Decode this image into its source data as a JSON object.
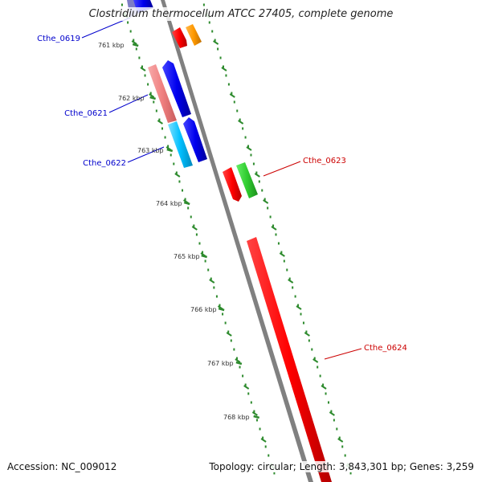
{
  "title": "Clostridium thermocellum ATCC 27405, complete genome",
  "footer": {
    "accession": "Accession: NC_009012",
    "summary": "Topology: circular; Length: 3,843,301 bp; Genes: 3,259"
  },
  "colors": {
    "backbone": "#808080",
    "tick": "#2e8b2e",
    "label_blue": "#0000cc",
    "label_red": "#cc0000"
  },
  "ticks": [
    {
      "label": "761 kbp"
    },
    {
      "label": "762 kbp"
    },
    {
      "label": "763 kbp"
    },
    {
      "label": "764 kbp"
    },
    {
      "label": "765 kbp"
    },
    {
      "label": "766 kbp"
    },
    {
      "label": "767 kbp"
    },
    {
      "label": "768 kbp"
    }
  ],
  "genes": [
    {
      "id": "Cthe_0619",
      "color": "#0000cc"
    },
    {
      "id": "Cthe_0621",
      "color": "#0000cc"
    },
    {
      "id": "Cthe_0622",
      "color": "#0000cc"
    },
    {
      "id": "Cthe_0623",
      "color": "#cc0000"
    },
    {
      "id": "Cthe_0624",
      "color": "#cc0000"
    }
  ]
}
